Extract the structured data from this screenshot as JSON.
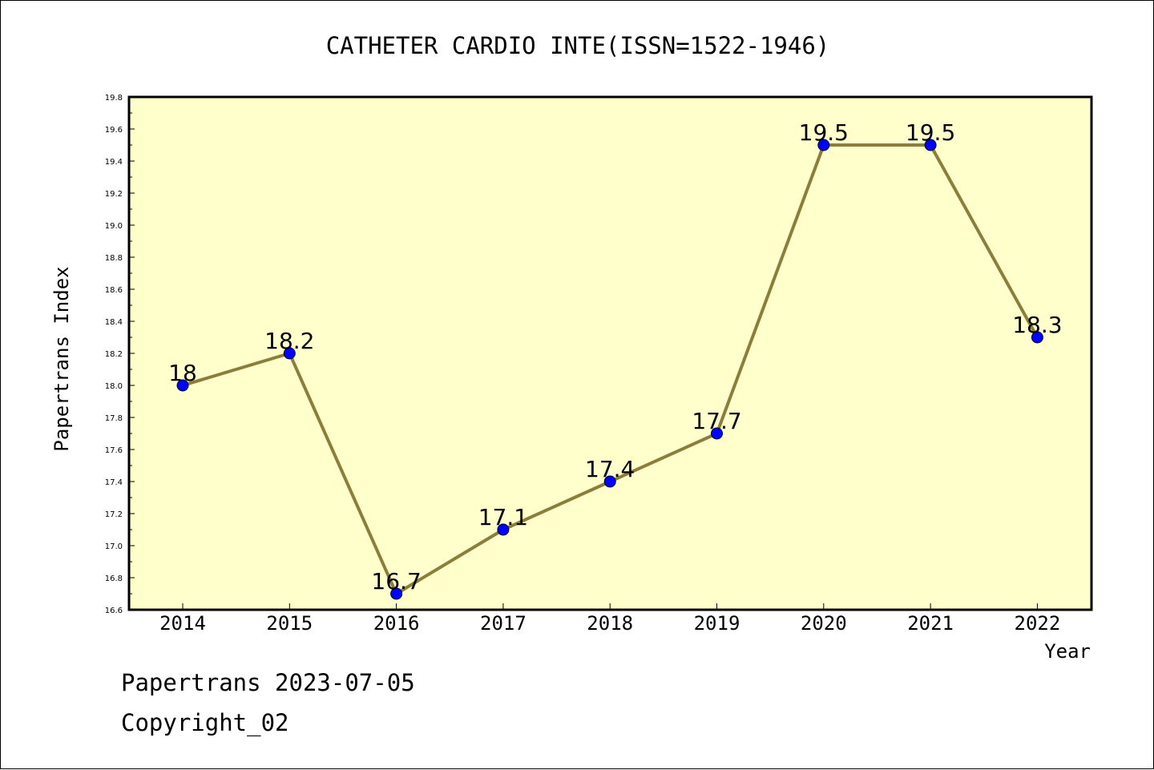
{
  "colors": {
    "plot_background": "#ffffcc",
    "line": "#8b7d3a",
    "marker": "#0000ff",
    "axis": "#000000"
  },
  "chart_data": {
    "type": "line",
    "title": "CATHETER CARDIO INTE(ISSN=1522-1946)",
    "xlabel": "Year",
    "ylabel": "Papertrans Index",
    "categories": [
      "2014",
      "2015",
      "2016",
      "2017",
      "2018",
      "2019",
      "2020",
      "2021",
      "2022"
    ],
    "series": [
      {
        "values": [
          18,
          18.2,
          16.7,
          17.1,
          17.4,
          17.7,
          19.5,
          19.5,
          18.3
        ],
        "data_labels": [
          "18",
          "18.2",
          "16.7",
          "17.1",
          "17.4",
          "17.7",
          "19.5",
          "19.5",
          "18.3"
        ]
      }
    ],
    "ylim": [
      16.6,
      19.8
    ],
    "yticks": [
      "16.6",
      "16.8",
      "17.0",
      "17.2",
      "17.4",
      "17.6",
      "17.8",
      "18.0",
      "18.2",
      "18.4",
      "18.6",
      "18.8",
      "19.0",
      "19.2",
      "19.4",
      "19.6",
      "19.8"
    ],
    "grid": false,
    "legend": "none"
  },
  "footer": {
    "date_line": "Papertrans 2023-07-05",
    "copyright_line": "Copyright_02"
  }
}
